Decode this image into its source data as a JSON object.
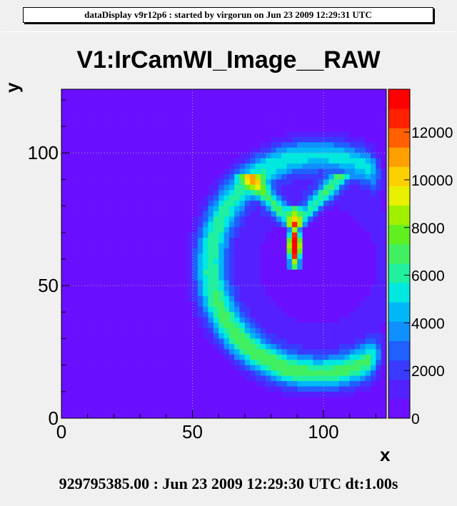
{
  "header": {
    "text": "dataDisplay v9r12p6 : started by virgorun on Jun 23 2009 12:29:31 UTC"
  },
  "footer": {
    "text": "929795385.00 : Jun 23 2009 12:29:30 UTC dt:1.00s"
  },
  "colors": {
    "background": "#f0f0f0",
    "plot_base": "#6020f0"
  },
  "chart_data": {
    "type": "heatmap",
    "title": "V1:IrCamWI_Image__RAW",
    "xlabel": "x",
    "ylabel": "y",
    "xlim": [
      0,
      124
    ],
    "ylim": [
      0,
      124
    ],
    "x_ticks": [
      "0",
      "50",
      "100"
    ],
    "y_ticks": [
      "0",
      "50",
      "100"
    ],
    "x_tick_values": [
      0,
      50,
      100
    ],
    "y_tick_values": [
      0,
      50,
      100
    ],
    "z_range": [
      0,
      13800
    ],
    "z_ticks": [
      "0",
      "2000",
      "4000",
      "6000",
      "8000",
      "10000",
      "12000"
    ],
    "z_tick_values": [
      0,
      2000,
      4000,
      6000,
      8000,
      10000,
      12000
    ],
    "grid": true,
    "palette": [
      "#6a0fff",
      "#5520ff",
      "#3a3aff",
      "#2060ff",
      "#1090ff",
      "#00b8f8",
      "#00e8e0",
      "#20f0a0",
      "#40f060",
      "#60f020",
      "#a0f000",
      "#e8f000",
      "#ffd000",
      "#ffa000",
      "#ff6000",
      "#ff2000",
      "#ff0000"
    ],
    "features": {
      "ring": {
        "cx": 98,
        "cy": 58,
        "r": 41,
        "width": 9,
        "value": 5000
      },
      "lower_arc_value": 6300,
      "bright_spot": {
        "x": 89,
        "y": 65,
        "value": 13500
      },
      "streak": {
        "x": 89,
        "y_from": 55,
        "y_to": 80,
        "value": 8000
      },
      "wing": {
        "x": 89,
        "y": 80,
        "value": 6500
      }
    }
  }
}
